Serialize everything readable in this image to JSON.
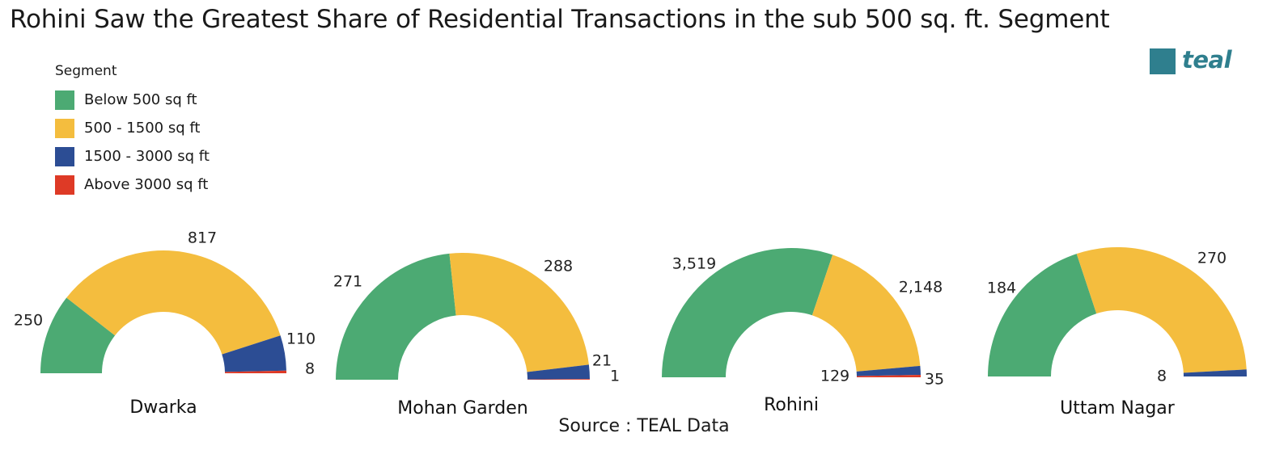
{
  "title": "Rohini Saw the Greatest Share of Residential Transactions in the sub 500 sq. ft. Segment",
  "logo": {
    "text": "teal",
    "color": "#2f7f8e"
  },
  "legend": {
    "title": "Segment",
    "items": [
      {
        "label": "Below 500 sq ft",
        "color": "#4caa73"
      },
      {
        "label": "500 - 1500 sq ft",
        "color": "#f4bd3e"
      },
      {
        "label": "1500 - 3000 sq ft",
        "color": "#2c4d94"
      },
      {
        "label": "Above 3000 sq ft",
        "color": "#de3a26"
      }
    ]
  },
  "source": "Source : TEAL Data",
  "chart_data": {
    "type": "pie",
    "subtype": "semi-donut",
    "series_names": [
      "Below 500 sq ft",
      "500 - 1500 sq ft",
      "1500 - 3000 sq ft",
      "Above 3000 sq ft"
    ],
    "charts": [
      {
        "name": "Dwarka",
        "values": [
          250,
          817,
          110,
          8
        ],
        "labels": [
          "250",
          "817",
          "110",
          "8"
        ]
      },
      {
        "name": "Mohan Garden",
        "values": [
          271,
          288,
          21,
          1
        ],
        "labels": [
          "271",
          "288",
          "21",
          "1"
        ]
      },
      {
        "name": "Rohini",
        "values": [
          3519,
          2148,
          129,
          35
        ],
        "labels": [
          "3,519",
          "2,148",
          "129",
          "35"
        ]
      },
      {
        "name": "Uttam Nagar",
        "values": [
          184,
          270,
          8,
          0
        ],
        "labels": [
          "184",
          "270",
          "8",
          ""
        ]
      }
    ]
  }
}
